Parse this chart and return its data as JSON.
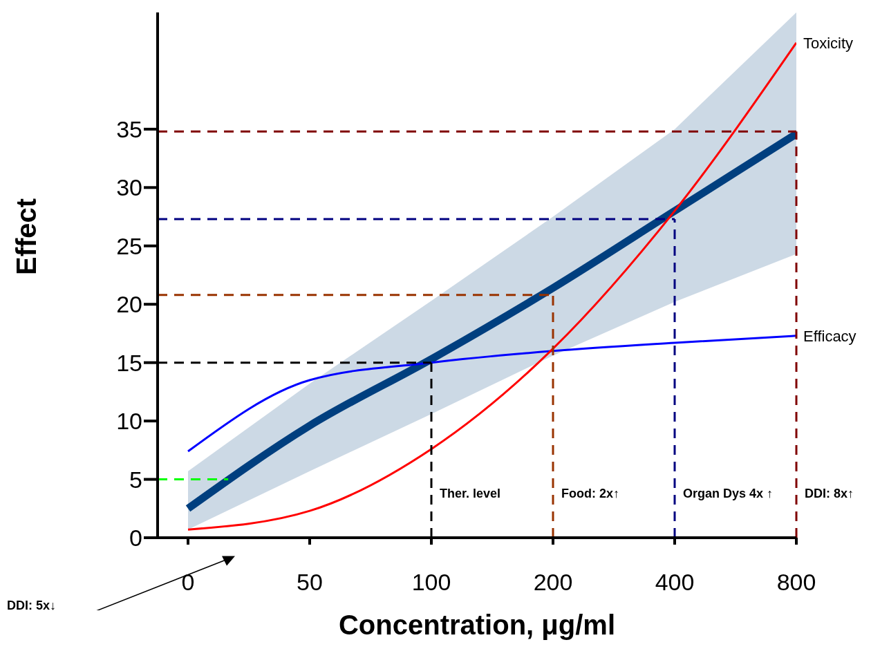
{
  "chart_data": {
    "type": "line",
    "xlabel": "Concentration, μg/ml",
    "ylabel": "Effect",
    "categories": [
      "0",
      "50",
      "100",
      "200",
      "400",
      "800"
    ],
    "ylim": [
      0,
      45
    ],
    "yticks": [
      0,
      5,
      10,
      15,
      20,
      25,
      30,
      35
    ],
    "series": [
      {
        "color": "#003f7f",
        "values": [
          2.5,
          9.6,
          15.3,
          21.4,
          28.0,
          34.6
        ],
        "lower": [
          0.7,
          5.7,
          10.6,
          15.6,
          20.2,
          24.3
        ],
        "upper": [
          5.7,
          13.2,
          20.3,
          27.5,
          35.0,
          45.0
        ]
      },
      {
        "name": "Efficacy",
        "color": "#0000ff",
        "values": [
          7.4,
          13.5,
          15.0,
          16.0,
          16.7,
          17.3
        ]
      },
      {
        "name": "Toxicity",
        "color": "#ff0000",
        "values": [
          0.7,
          2.3,
          7.6,
          16.2,
          28.0,
          42.4
        ]
      }
    ],
    "ref_lines": [
      {
        "axis": "y",
        "value": 5,
        "color": "#00ff00",
        "line_style": "dashed"
      },
      {
        "axis": "y",
        "value": 15,
        "color": "#000000",
        "line_style": "dashed"
      },
      {
        "axis": "x",
        "value": "100",
        "label": "Ther. level",
        "color": "#000000",
        "line_style": "dashed"
      },
      {
        "axis": "y",
        "value": 20.8,
        "color": "#993300",
        "line_style": "dashed"
      },
      {
        "axis": "x",
        "value": "200",
        "label": "Food: 2x↑",
        "color": "#993300",
        "line_style": "dashed"
      },
      {
        "axis": "y",
        "value": 27.3,
        "color": "#000080",
        "line_style": "dashed"
      },
      {
        "axis": "x",
        "value": "400",
        "label": "Organ Dys 4x ↑",
        "color": "#000080",
        "line_style": "dashed"
      },
      {
        "axis": "y",
        "value": 34.8,
        "color": "#800000",
        "line_style": "dashed"
      },
      {
        "axis": "x",
        "value": "800",
        "label": "DDI: 8x↑",
        "color": "#800000",
        "line_style": "dashed"
      }
    ],
    "annotations": [
      "DDI: 5x↓"
    ],
    "grid": false,
    "legend": false,
    "marker": "none",
    "line_style": "solid"
  }
}
